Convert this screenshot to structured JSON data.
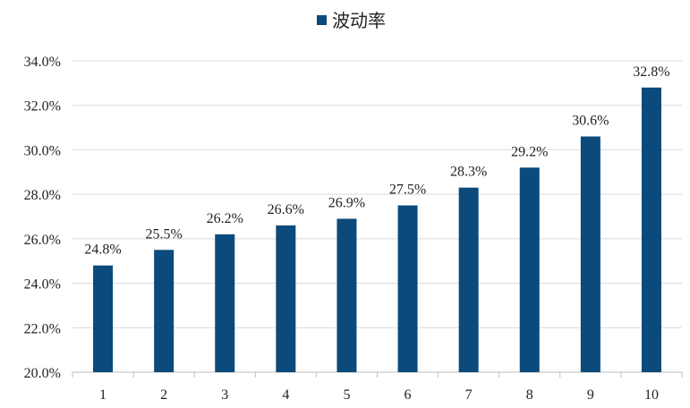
{
  "chart_data": {
    "type": "bar",
    "categories": [
      "1",
      "2",
      "3",
      "4",
      "5",
      "6",
      "7",
      "8",
      "9",
      "10"
    ],
    "series": [
      {
        "name": "波动率",
        "values": [
          24.8,
          25.5,
          26.2,
          26.6,
          26.9,
          27.5,
          28.3,
          29.2,
          30.6,
          32.8
        ],
        "labels": [
          "24.8%",
          "25.5%",
          "26.2%",
          "26.6%",
          "26.9%",
          "27.5%",
          "28.3%",
          "29.2%",
          "30.6%",
          "32.8%"
        ]
      }
    ],
    "ylim": [
      20,
      34
    ],
    "yticks": [
      20,
      22,
      24,
      26,
      28,
      30,
      32,
      34
    ],
    "ytick_labels": [
      "20.0%",
      "22.0%",
      "24.0%",
      "26.0%",
      "28.0%",
      "30.0%",
      "32.0%",
      "34.0%"
    ],
    "grid": true,
    "legend_position": "top-center",
    "colors": {
      "bar": "#0b4a7a",
      "grid": "#d9d9d9",
      "axis": "#bfbfbf"
    }
  }
}
